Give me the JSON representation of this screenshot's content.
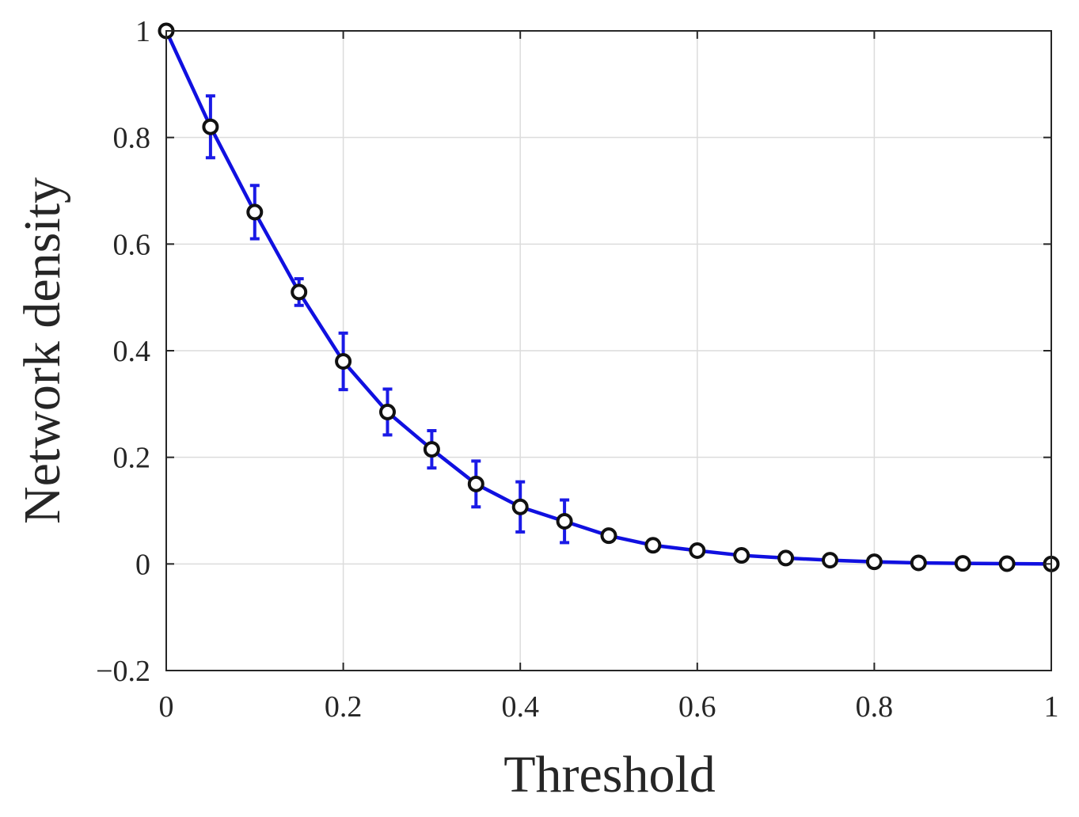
{
  "chart_data": {
    "type": "line",
    "title": "",
    "xlabel": "Threshold",
    "ylabel": "Network density",
    "xlim": [
      0,
      1
    ],
    "ylim": [
      -0.2,
      1
    ],
    "grid": true,
    "legend": "none",
    "x_ticks": [
      0,
      0.2,
      0.4,
      0.6,
      0.8,
      1
    ],
    "x_tick_labels": [
      "0",
      "0.2",
      "0.4",
      "0.6",
      "0.8",
      "1"
    ],
    "y_ticks": [
      -0.2,
      0,
      0.2,
      0.4,
      0.6,
      0.8,
      1
    ],
    "y_tick_labels": [
      "−0.2",
      "0",
      "0.2",
      "0.4",
      "0.6",
      "0.8",
      "1"
    ],
    "series": [
      {
        "line_color": "#1010e0",
        "marker_edge_color": "#111111",
        "marker_face_color": "#ffffff",
        "errorbar_color": "#1a1ae6",
        "x": [
          0,
          0.05,
          0.1,
          0.15,
          0.2,
          0.25,
          0.3,
          0.35,
          0.4,
          0.45,
          0.5,
          0.55,
          0.6,
          0.65,
          0.7,
          0.75,
          0.8,
          0.85,
          0.9,
          0.95,
          1.0
        ],
        "y": [
          1.0,
          0.82,
          0.66,
          0.51,
          0.38,
          0.285,
          0.215,
          0.15,
          0.107,
          0.08,
          0.053,
          0.035,
          0.025,
          0.016,
          0.011,
          0.007,
          0.004,
          0.002,
          0.001,
          0.0005,
          0.0
        ],
        "error": [
          0,
          0.058,
          0.05,
          0.025,
          0.053,
          0.043,
          0.035,
          0.043,
          0.047,
          0.04,
          0,
          0,
          0,
          0,
          0,
          0,
          0,
          0,
          0,
          0,
          0
        ]
      }
    ]
  }
}
